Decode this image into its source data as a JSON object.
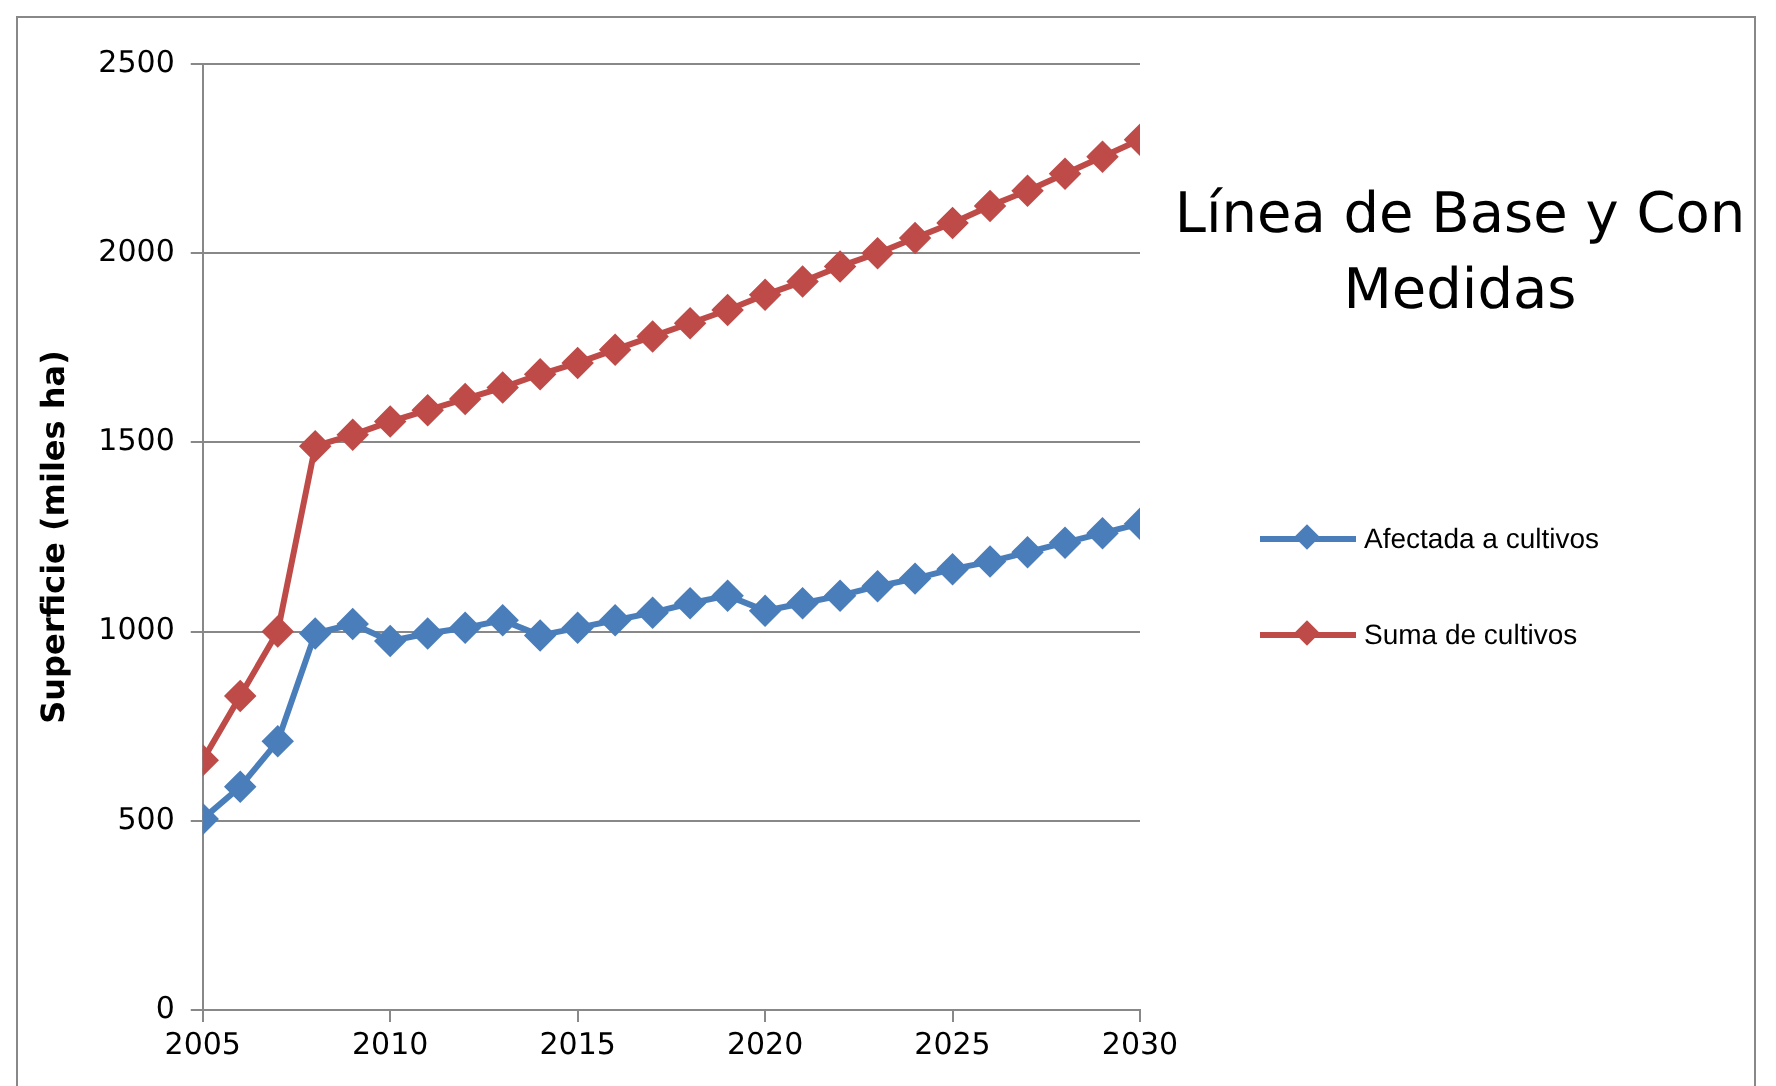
{
  "chart_data": {
    "type": "line",
    "title": "Línea de Base y Con Medidas",
    "ylabel": "Superficie (miles ha)",
    "x": [
      2005,
      2006,
      2007,
      2008,
      2009,
      2010,
      2011,
      2012,
      2013,
      2014,
      2015,
      2016,
      2017,
      2018,
      2019,
      2020,
      2021,
      2022,
      2023,
      2024,
      2025,
      2026,
      2027,
      2028,
      2029,
      2030
    ],
    "series": [
      {
        "name": "Afectada a cultivos",
        "color": "#4a7ebb",
        "values": [
          505,
          590,
          710,
          995,
          1020,
          975,
          995,
          1010,
          1030,
          990,
          1010,
          1030,
          1050,
          1075,
          1095,
          1055,
          1075,
          1095,
          1120,
          1140,
          1165,
          1185,
          1210,
          1235,
          1260,
          1285
        ]
      },
      {
        "name": "Suma de cultivos",
        "color": "#be4b48",
        "values": [
          660,
          830,
          1000,
          1490,
          1520,
          1555,
          1585,
          1615,
          1645,
          1680,
          1710,
          1745,
          1780,
          1815,
          1850,
          1890,
          1925,
          1965,
          2000,
          2040,
          2080,
          2125,
          2165,
          2210,
          2255,
          2300
        ]
      }
    ],
    "xlim": [
      2005,
      2030
    ],
    "xticks": [
      2005,
      2010,
      2015,
      2020,
      2025,
      2030
    ],
    "ylim": [
      0,
      2500
    ],
    "yticks": [
      0,
      500,
      1000,
      1500,
      2000,
      2500
    ],
    "grid": "y",
    "legend": "right",
    "marker": "diamond",
    "line_style": "solid"
  }
}
